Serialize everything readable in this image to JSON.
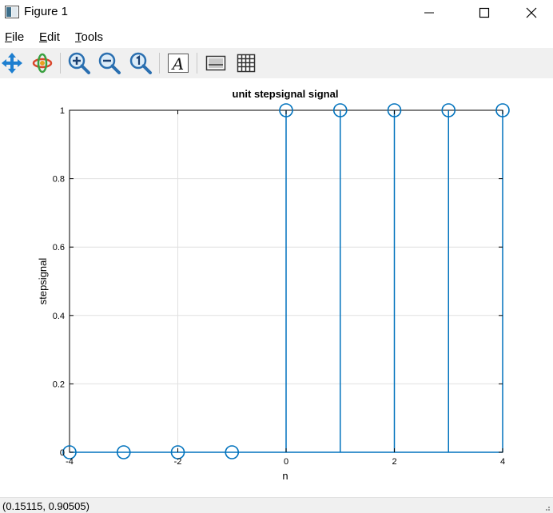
{
  "window": {
    "title": "Figure 1"
  },
  "menu": {
    "items": [
      {
        "label_first": "F",
        "label_rest": "ile"
      },
      {
        "label_first": "E",
        "label_rest": "dit"
      },
      {
        "label_first": "T",
        "label_rest": "ools"
      }
    ]
  },
  "toolbar": {
    "tools": [
      "pan-icon",
      "rotate-icon",
      "zoom-in-icon",
      "zoom-out-icon",
      "zoom-reset-icon",
      "text-annotation-icon",
      "legend-icon",
      "grid-icon"
    ]
  },
  "colors": {
    "stem": "#0072bd",
    "grid": "#e0e0e0",
    "axis": "#000000"
  },
  "chart_data": {
    "type": "stem",
    "title": "unit stepsignal signal",
    "xlabel": "n",
    "ylabel": "stepsignal",
    "x": [
      -4,
      -3,
      -2,
      -1,
      0,
      1,
      2,
      3,
      4
    ],
    "y": [
      0,
      0,
      0,
      0,
      1,
      1,
      1,
      1,
      1
    ],
    "xlim": [
      -4,
      4
    ],
    "ylim": [
      0,
      1
    ],
    "xticks": [
      -4,
      -2,
      0,
      2,
      4
    ],
    "xtick_labels": [
      "-4",
      "-2",
      "0",
      "2",
      "4"
    ],
    "yticks": [
      0,
      0.2,
      0.4,
      0.6,
      0.8,
      1
    ],
    "ytick_labels": [
      "0",
      "0.2",
      "0.4",
      "0.6",
      "0.8",
      "1"
    ],
    "grid": true,
    "marker": "circle-open"
  },
  "status": {
    "coords": "(0.15115, 0.90505)"
  }
}
